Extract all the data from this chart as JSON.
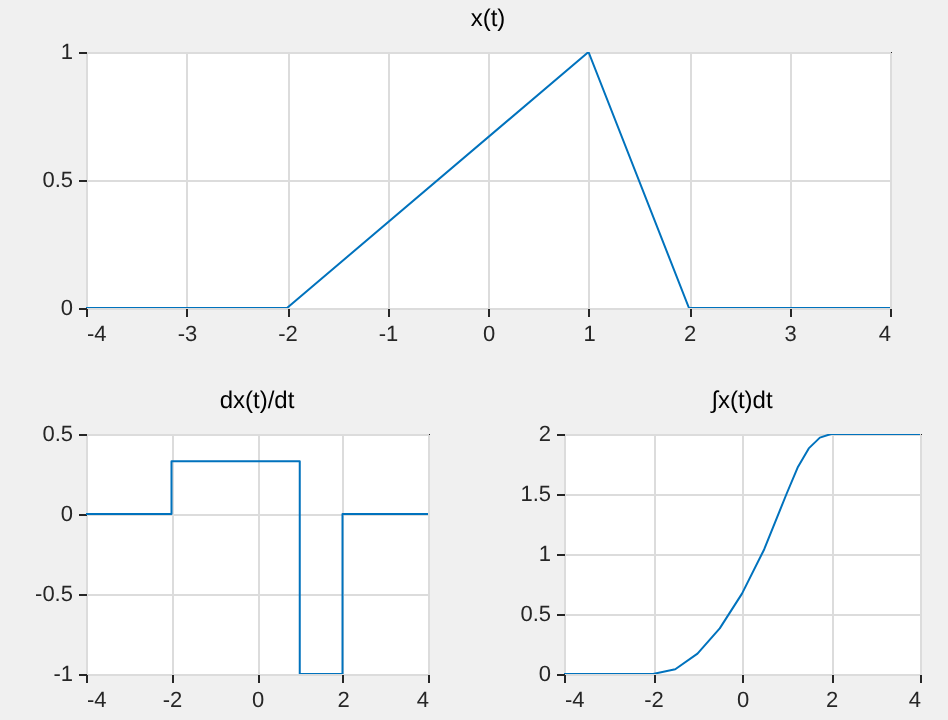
{
  "chart_data": [
    {
      "type": "line",
      "title": "x(t)",
      "xlim": [
        -4,
        4
      ],
      "xticks": [
        -4,
        -3,
        -2,
        -1,
        0,
        1,
        2,
        3,
        4
      ],
      "ylim": [
        0,
        1
      ],
      "yticks": [
        0,
        0.5,
        1
      ],
      "grid": true,
      "series": [
        {
          "color": "#0072bd",
          "x": [
            -4,
            -2,
            1,
            2,
            4
          ],
          "values": [
            0,
            0,
            1,
            0,
            0
          ]
        }
      ]
    },
    {
      "type": "line",
      "title": "dx(t)/dt",
      "xlim": [
        -4,
        4
      ],
      "xticks": [
        -4,
        -2,
        0,
        2,
        4
      ],
      "ylim": [
        -1,
        0.5
      ],
      "yticks": [
        -1,
        -0.5,
        0,
        0.5
      ],
      "grid": true,
      "series": [
        {
          "color": "#0072bd",
          "x": [
            -4,
            -2,
            -2,
            1,
            1,
            2,
            2,
            4
          ],
          "values": [
            0,
            0,
            0.33,
            0.33,
            -1,
            -1,
            0,
            0
          ]
        }
      ]
    },
    {
      "type": "line",
      "title": "∫x(t)dt",
      "xlim": [
        -4,
        4
      ],
      "xticks": [
        -4,
        -2,
        0,
        2,
        4
      ],
      "ylim": [
        0,
        2
      ],
      "yticks": [
        0,
        0.5,
        1,
        1.5,
        2
      ],
      "grid": true,
      "series": [
        {
          "color": "#0072bd",
          "x": [
            -4,
            -2,
            -1.5,
            -1,
            -0.5,
            0,
            0.5,
            1,
            1.25,
            1.5,
            1.75,
            2,
            4
          ],
          "values": [
            0,
            0,
            0.04,
            0.17,
            0.38,
            0.67,
            1.04,
            1.5,
            1.72,
            1.88,
            1.97,
            2,
            2
          ]
        }
      ]
    }
  ]
}
